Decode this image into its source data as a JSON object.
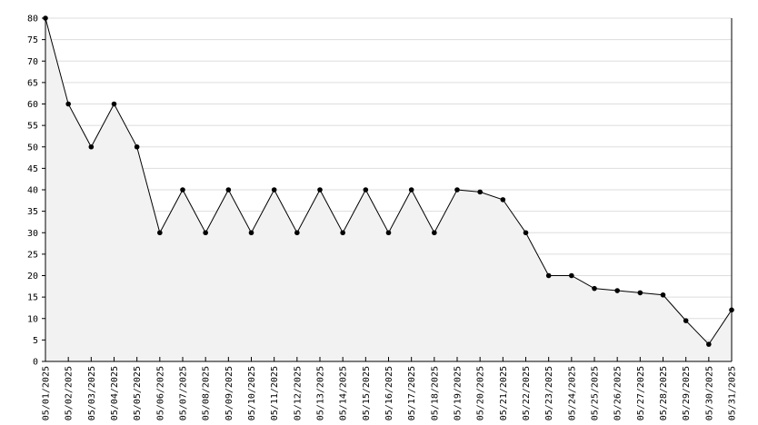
{
  "chart_data": {
    "type": "area",
    "title": "",
    "xlabel": "",
    "ylabel": "",
    "ylim": [
      0,
      80
    ],
    "yticks": [
      0,
      5,
      10,
      15,
      20,
      25,
      30,
      35,
      40,
      45,
      50,
      55,
      60,
      65,
      70,
      75,
      80
    ],
    "grid": true,
    "legend": "none",
    "colors": {
      "line": "#000000",
      "fill": "#f2f2f2",
      "grid": "#dddddd",
      "marker": "#000000"
    },
    "x": [
      "05/01/2025",
      "05/02/2025",
      "05/03/2025",
      "05/04/2025",
      "05/05/2025",
      "05/06/2025",
      "05/07/2025",
      "05/08/2025",
      "05/09/2025",
      "05/10/2025",
      "05/11/2025",
      "05/12/2025",
      "05/13/2025",
      "05/14/2025",
      "05/15/2025",
      "05/16/2025",
      "05/17/2025",
      "05/18/2025",
      "05/19/2025",
      "05/20/2025",
      "05/21/2025",
      "05/22/2025",
      "05/23/2025",
      "05/24/2025",
      "05/25/2025",
      "05/26/2025",
      "05/27/2025",
      "05/28/2025",
      "05/29/2025",
      "05/30/2025",
      "05/31/2025"
    ],
    "values": [
      80,
      60,
      50,
      60,
      50,
      30,
      40,
      30,
      40,
      30,
      40,
      30,
      40,
      30,
      40,
      30,
      40,
      30,
      40,
      39.5,
      37.7,
      30,
      20,
      20,
      17,
      16.5,
      16,
      15.5,
      9.5,
      4,
      12
    ]
  }
}
